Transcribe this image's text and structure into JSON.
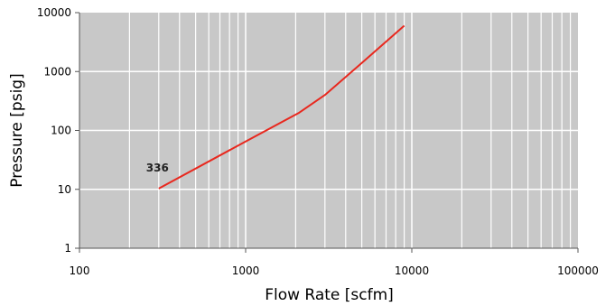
{
  "chart_data": {
    "type": "line",
    "title": "",
    "xlabel": "Flow Rate [scfm]",
    "ylabel": "Pressure [psig]",
    "x_scale": "log",
    "y_scale": "log",
    "xlim": [
      100,
      100000
    ],
    "ylim": [
      1,
      10000
    ],
    "x_tick_labels": [
      "100",
      "1000",
      "10000",
      "100000"
    ],
    "y_tick_labels": [
      "1",
      "10",
      "100",
      "1000",
      "10000"
    ],
    "grid": true,
    "plot_background": "#c8c8c8",
    "grid_color": "#ffffff",
    "series": [
      {
        "name": "336",
        "color": "#e8281e",
        "x": [
          300,
          1000,
          2100,
          3000,
          5000,
          9000
        ],
        "y": [
          10.3,
          65,
          200,
          400,
          1400,
          6000
        ]
      }
    ]
  }
}
